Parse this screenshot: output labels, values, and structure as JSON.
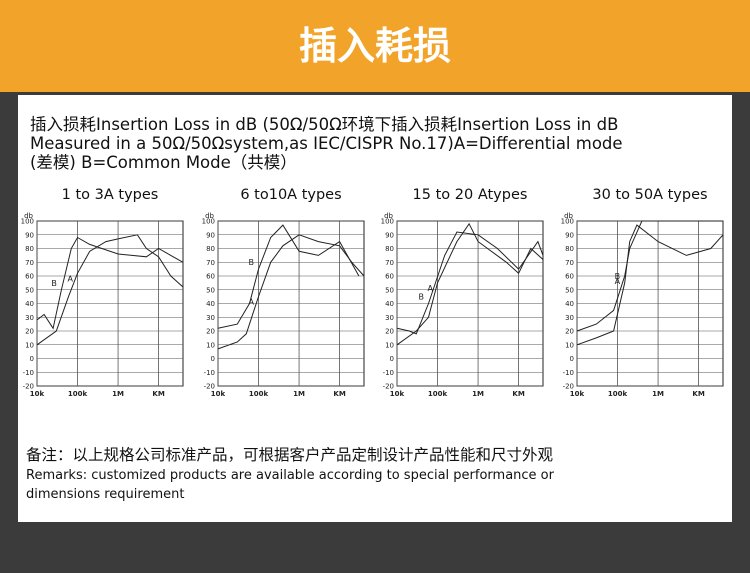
{
  "header": {
    "title": "插入耗损"
  },
  "description": {
    "lines": [
      "插入损耗Insertion Loss in dB (50Ω/50Ω环境下插入损耗Insertion Loss in dB",
      "Measured in a 50Ω/50Ωsystem,as IEC/CISPR No.17)A=Differential mode",
      "(差模) B=Common Mode（共模）"
    ]
  },
  "chart_data": [
    {
      "type": "line",
      "title": "1 to 3A types",
      "y_label": "db",
      "xscale": "log",
      "grid": true,
      "xlim": [
        10000,
        40000000
      ],
      "xticks": [
        {
          "value": 10000,
          "label": "10k"
        },
        {
          "value": 100000,
          "label": "100k"
        },
        {
          "value": 1000000,
          "label": "1M"
        },
        {
          "value": 10000000,
          "label": "KM"
        }
      ],
      "ylim": [
        -20,
        100
      ],
      "yticks": [
        -20,
        -10,
        0,
        10,
        20,
        30,
        40,
        50,
        60,
        70,
        80,
        90,
        100
      ],
      "series": [
        {
          "name": "A",
          "color": "#222",
          "x": [
            10000,
            30000,
            60000,
            100000,
            200000,
            500000,
            1000000,
            3000000,
            5000000,
            10000000,
            20000000,
            40000000
          ],
          "values": [
            10,
            20,
            45,
            62,
            78,
            85,
            87,
            90,
            80,
            74,
            60,
            52
          ]
        },
        {
          "name": "B",
          "color": "#222",
          "x": [
            10000,
            15000,
            25000,
            40000,
            70000,
            100000,
            200000,
            1000000,
            5000000,
            10000000,
            20000000,
            40000000
          ],
          "values": [
            28,
            32,
            22,
            50,
            80,
            88,
            83,
            76,
            74,
            80,
            75,
            70
          ]
        }
      ]
    },
    {
      "type": "line",
      "title": "6 to10A types",
      "y_label": "db",
      "xscale": "log",
      "grid": true,
      "xlim": [
        10000,
        40000000
      ],
      "xticks": [
        {
          "value": 10000,
          "label": "10k"
        },
        {
          "value": 100000,
          "label": "100k"
        },
        {
          "value": 1000000,
          "label": "1M"
        },
        {
          "value": 10000000,
          "label": "KM"
        }
      ],
      "ylim": [
        -20,
        100
      ],
      "yticks": [
        -20,
        -10,
        0,
        10,
        20,
        30,
        40,
        50,
        60,
        70,
        80,
        90,
        100
      ],
      "series": [
        {
          "name": "A",
          "color": "#222",
          "x": [
            10000,
            30000,
            50000,
            100000,
            200000,
            400000,
            1000000,
            3000000,
            10000000,
            20000000,
            40000000
          ],
          "values": [
            7,
            12,
            18,
            45,
            70,
            82,
            90,
            85,
            82,
            70,
            60
          ]
        },
        {
          "name": "B",
          "color": "#222",
          "x": [
            10000,
            30000,
            60000,
            100000,
            200000,
            400000,
            1000000,
            3000000,
            10000000,
            30000000
          ],
          "values": [
            22,
            25,
            40,
            65,
            88,
            97,
            78,
            75,
            85,
            60
          ]
        }
      ]
    },
    {
      "type": "line",
      "title": "15 to 20 Atypes",
      "y_label": "db",
      "xscale": "log",
      "grid": true,
      "xlim": [
        10000,
        40000000
      ],
      "xticks": [
        {
          "value": 10000,
          "label": "10k"
        },
        {
          "value": 100000,
          "label": "100k"
        },
        {
          "value": 1000000,
          "label": "1M"
        },
        {
          "value": 10000000,
          "label": "KM"
        }
      ],
      "ylim": [
        -20,
        100
      ],
      "yticks": [
        -20,
        -10,
        0,
        10,
        20,
        30,
        40,
        50,
        60,
        70,
        80,
        90,
        100
      ],
      "series": [
        {
          "name": "A",
          "color": "#222",
          "x": [
            10000,
            30000,
            60000,
            100000,
            300000,
            600000,
            1000000,
            5000000,
            10000000,
            20000000,
            40000000
          ],
          "values": [
            10,
            20,
            30,
            55,
            85,
            98,
            85,
            70,
            62,
            80,
            72
          ]
        },
        {
          "name": "B",
          "color": "#222",
          "x": [
            10000,
            20000,
            30000,
            60000,
            150000,
            300000,
            1000000,
            3000000,
            10000000,
            30000000,
            40000000
          ],
          "values": [
            22,
            20,
            18,
            40,
            75,
            92,
            90,
            80,
            65,
            85,
            75
          ]
        }
      ]
    },
    {
      "type": "line",
      "title": "30 to 50A types",
      "y_label": "db",
      "xscale": "log",
      "grid": true,
      "xlim": [
        10000,
        40000000
      ],
      "xticks": [
        {
          "value": 10000,
          "label": "10k"
        },
        {
          "value": 100000,
          "label": "100k"
        },
        {
          "value": 1000000,
          "label": "1M"
        },
        {
          "value": 10000000,
          "label": "KM"
        }
      ],
      "ylim": [
        -20,
        100
      ],
      "yticks": [
        -20,
        -10,
        0,
        10,
        20,
        30,
        40,
        50,
        60,
        70,
        80,
        90,
        100
      ],
      "series": [
        {
          "name": "A",
          "color": "#222",
          "x": [
            10000,
            30000,
            80000,
            150000,
            200000,
            400000,
            10000000,
            40000000
          ],
          "values": [
            20,
            25,
            35,
            60,
            80,
            100,
            100,
            100
          ]
        },
        {
          "name": "B",
          "color": "#222",
          "x": [
            10000,
            30000,
            80000,
            150000,
            200000,
            300000,
            1000000,
            5000000,
            20000000,
            40000000
          ],
          "values": [
            10,
            15,
            20,
            55,
            85,
            97,
            85,
            75,
            80,
            90
          ]
        }
      ]
    }
  ],
  "remarks": {
    "cn": "备注：以上规格公司标准产品，可根据客户产品定制设计产品性能和尺寸外观",
    "en": [
      "Remarks: customized products are available according to special performance or",
      "dimensions requirement"
    ]
  }
}
